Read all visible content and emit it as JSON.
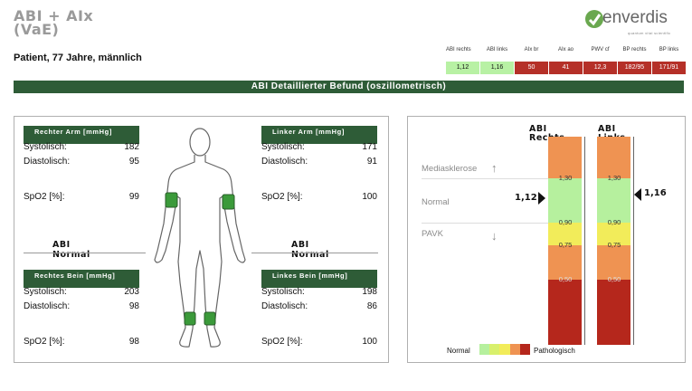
{
  "header": {
    "title": "ABI + AIx (VaE)",
    "patient": "Patient, 77 Jahre, männlich",
    "logo_word": "enverdis",
    "logo_tagline": "quantum vital scientific"
  },
  "summary": {
    "columns": [
      {
        "label": "ABI rechts",
        "value": "1,12",
        "status": "green"
      },
      {
        "label": "ABI links",
        "value": "1,16",
        "status": "green"
      },
      {
        "label": "AIx br",
        "value": "50",
        "status": "red"
      },
      {
        "label": "AIx ao",
        "value": "41",
        "status": "red"
      },
      {
        "label": "PWV cf",
        "value": "12,3",
        "status": "red"
      },
      {
        "label": "BP rechts",
        "value": "182/95",
        "status": "red"
      },
      {
        "label": "BP links",
        "value": "171/91",
        "status": "red"
      }
    ]
  },
  "banner": "ABI Detaillierter Befund (oszillometrisch)",
  "measurements": {
    "right_arm": {
      "header": "Rechter Arm [mmHg]",
      "systolic_label": "Systolisch:",
      "systolic": "182",
      "diastolic_label": "Diastolisch:",
      "diastolic": "95",
      "spo2_label": "SpO2 [%]:",
      "spo2": "99"
    },
    "left_arm": {
      "header": "Linker Arm [mmHg]",
      "systolic_label": "Systolisch:",
      "systolic": "171",
      "diastolic_label": "Diastolisch:",
      "diastolic": "91",
      "spo2_label": "SpO2 [%]:",
      "spo2": "100"
    },
    "right_leg": {
      "header": "Rechtes Bein [mmHg]",
      "systolic_label": "Systolisch:",
      "systolic": "203",
      "diastolic_label": "Diastolisch:",
      "diastolic": "98",
      "spo2_label": "SpO2 [%]:",
      "spo2": "98"
    },
    "left_leg": {
      "header": "Linkes Bein [mmHg]",
      "systolic_label": "Systolisch:",
      "systolic": "198",
      "diastolic_label": "Diastolisch:",
      "diastolic": "86",
      "spo2_label": "SpO2 [%]:",
      "spo2": "100"
    },
    "abi_right": {
      "line1": "ABI",
      "line2": "Normal"
    },
    "abi_left": {
      "line1": "ABI",
      "line2": "Normal"
    }
  },
  "abi_scale": {
    "right_title": [
      "ABI",
      "Rechts"
    ],
    "left_title": [
      "ABI",
      "Links"
    ],
    "right_value": "1,12",
    "left_value": "1,16",
    "ticks": [
      "1,30",
      "0,90",
      "0,75",
      "0,50"
    ],
    "zones": [
      {
        "name": "Mediasklerose",
        "arrow": "up"
      },
      {
        "name": "Normal",
        "arrow": ""
      },
      {
        "name": "PAVK",
        "arrow": "down"
      }
    ],
    "legend": {
      "left": "Normal",
      "right": "Pathologisch"
    },
    "colors": {
      "mediasklerose": "#ef9352",
      "normal": "#b6f09e",
      "grenzwert": "#f2ec5a",
      "leicht": "#ef9352",
      "schwer": "#b5271c",
      "header_green": "#2e5c37"
    }
  }
}
